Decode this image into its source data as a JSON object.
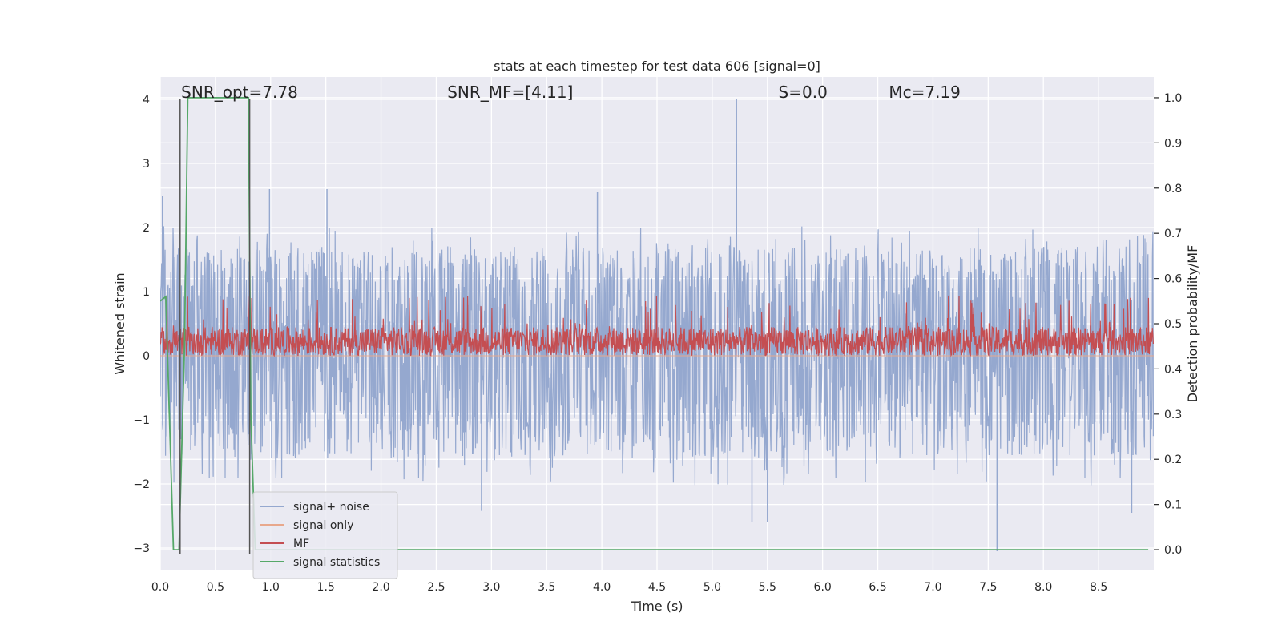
{
  "chart_data": {
    "type": "line",
    "title": "stats at each timestep for test data 606 [signal=0]",
    "xlabel": "Time (s)",
    "ylabel": "Whitened strain",
    "y2label": "Detection probability/MF",
    "xlim": [
      0.0,
      9.0
    ],
    "ylim": [
      -3.35,
      4.35
    ],
    "y2lim": [
      -0.046,
      1.046
    ],
    "grid": true,
    "legend_position": "bottom-left",
    "x_ticks": [
      0.0,
      0.5,
      1.0,
      1.5,
      2.0,
      2.5,
      3.0,
      3.5,
      4.0,
      4.5,
      5.0,
      5.5,
      6.0,
      6.5,
      7.0,
      7.5,
      8.0,
      8.5
    ],
    "x_tick_labels": [
      "0.0",
      "0.5",
      "1.0",
      "1.5",
      "2.0",
      "2.5",
      "3.0",
      "3.5",
      "4.0",
      "4.5",
      "5.0",
      "5.5",
      "6.0",
      "6.5",
      "7.0",
      "7.5",
      "8.0",
      "8.5"
    ],
    "y_ticks": [
      -3,
      -2,
      -1,
      0,
      1,
      2,
      3,
      4
    ],
    "y_tick_labels": [
      "−3",
      "−2",
      "−1",
      "0",
      "1",
      "2",
      "3",
      "4"
    ],
    "y2_ticks": [
      0.0,
      0.1,
      0.2,
      0.3,
      0.4,
      0.5,
      0.6,
      0.7,
      0.8,
      0.9,
      1.0
    ],
    "y2_tick_labels": [
      "0.0",
      "0.1",
      "0.2",
      "0.3",
      "0.4",
      "0.5",
      "0.6",
      "0.7",
      "0.8",
      "0.9",
      "1.0"
    ],
    "annotations": [
      {
        "text": "SNR_opt=7.78",
        "x": 0.19
      },
      {
        "text": "SNR_MF=[4.11]",
        "x": 2.6
      },
      {
        "text": "S=0.0",
        "x": 5.6
      },
      {
        "text": "Mc=7.19",
        "x": 6.6
      }
    ],
    "annotation_y": 4.1,
    "vertical_markers": {
      "x": [
        0.18,
        0.81
      ],
      "y_range": [
        -3.1,
        4.0
      ],
      "color": "#555555"
    },
    "series": [
      {
        "name": "signal+ noise",
        "color": "#95a8cf",
        "axis": "left",
        "kind": "noise",
        "sample_dt": 0.004,
        "envelope": {
          "upper_typical": 1.4,
          "upper_max": 2.6,
          "lower_typical": -1.3,
          "lower_max": -2.5,
          "dense_band": [
            -0.9,
            1.15
          ]
        },
        "peaks": [
          {
            "x": 0.02,
            "y": 2.5
          },
          {
            "x": 0.24,
            "y": 2.5
          },
          {
            "x": 0.99,
            "y": 2.6
          },
          {
            "x": 1.51,
            "y": 2.6
          },
          {
            "x": 3.96,
            "y": 2.55
          },
          {
            "x": 5.22,
            "y": 4.0
          },
          {
            "x": 5.22,
            "y": 3.3
          },
          {
            "x": 2.91,
            "y": -2.42
          },
          {
            "x": 5.36,
            "y": -2.6
          },
          {
            "x": 5.5,
            "y": -2.6
          },
          {
            "x": 7.58,
            "y": -3.05
          },
          {
            "x": 8.8,
            "y": -2.45
          }
        ]
      },
      {
        "name": "signal only",
        "color": "#e8a88c",
        "axis": "left",
        "kind": "flat",
        "y": 0.0
      },
      {
        "name": "MF",
        "color": "#c44e52",
        "axis": "left",
        "kind": "band",
        "sample_dt": 0.004,
        "envelope": {
          "lower": 0.0,
          "typical_upper": 0.45,
          "max_upper": 0.95
        }
      },
      {
        "name": "signal statistics",
        "color": "#55a868",
        "axis": "right",
        "kind": "polyline",
        "x": [
          0.0,
          0.05,
          0.12,
          0.17,
          0.22,
          0.25,
          0.8,
          0.82,
          0.86,
          8.95
        ],
        "y": [
          0.55,
          0.56,
          -0.0,
          0.0,
          0.45,
          1.0,
          1.0,
          0.3,
          0.0,
          0.0
        ]
      }
    ]
  }
}
